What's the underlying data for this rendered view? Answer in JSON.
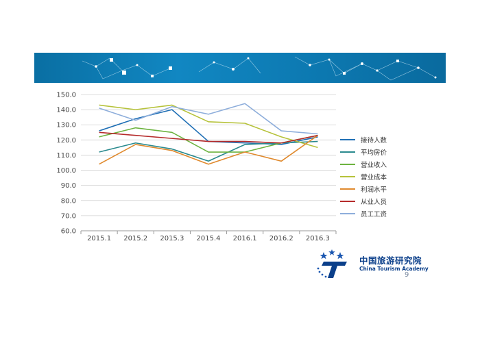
{
  "banner": {
    "color": "#0a78b0"
  },
  "logo": {
    "name_cn": "中国旅游研究院",
    "name_en": "China Tourism Academy",
    "icon": "academy-star-t-logo",
    "color": "#0b3f8a"
  },
  "page_number": "9",
  "chart_data": {
    "type": "line",
    "categories": [
      "2015.1",
      "2015.2",
      "2015.3",
      "2015.4",
      "2016.1",
      "2016.2",
      "2016.3"
    ],
    "ylim": [
      60,
      150
    ],
    "yticks": [
      "60.0",
      "70.0",
      "80.0",
      "90.0",
      "100.0",
      "110.0",
      "120.0",
      "130.0",
      "140.0",
      "150.0"
    ],
    "grid": true,
    "legend_position": "right",
    "series": [
      {
        "name": "接待人数",
        "color": "#1f6fb5",
        "values": [
          126,
          134,
          140,
          119,
          118,
          117,
          122
        ]
      },
      {
        "name": "平均房价",
        "color": "#2a8a8e",
        "values": [
          112,
          118,
          114,
          106,
          117,
          118,
          119
        ]
      },
      {
        "name": "营业收入",
        "color": "#6cb33f",
        "values": [
          122,
          128,
          125,
          112,
          112,
          118,
          123
        ]
      },
      {
        "name": "营业成本",
        "color": "#b6c23a",
        "values": [
          143,
          140,
          143,
          132,
          131,
          122,
          115
        ]
      },
      {
        "name": "利润水平",
        "color": "#e08a2e",
        "values": [
          104,
          117,
          113,
          104,
          112,
          106,
          123
        ]
      },
      {
        "name": "从业人员",
        "color": "#b52b2b",
        "values": [
          125,
          123,
          121,
          119,
          119,
          118,
          123
        ]
      },
      {
        "name": "员工工资",
        "color": "#8eaedb",
        "values": [
          141,
          133,
          142,
          137,
          144,
          126,
          124
        ]
      }
    ]
  }
}
